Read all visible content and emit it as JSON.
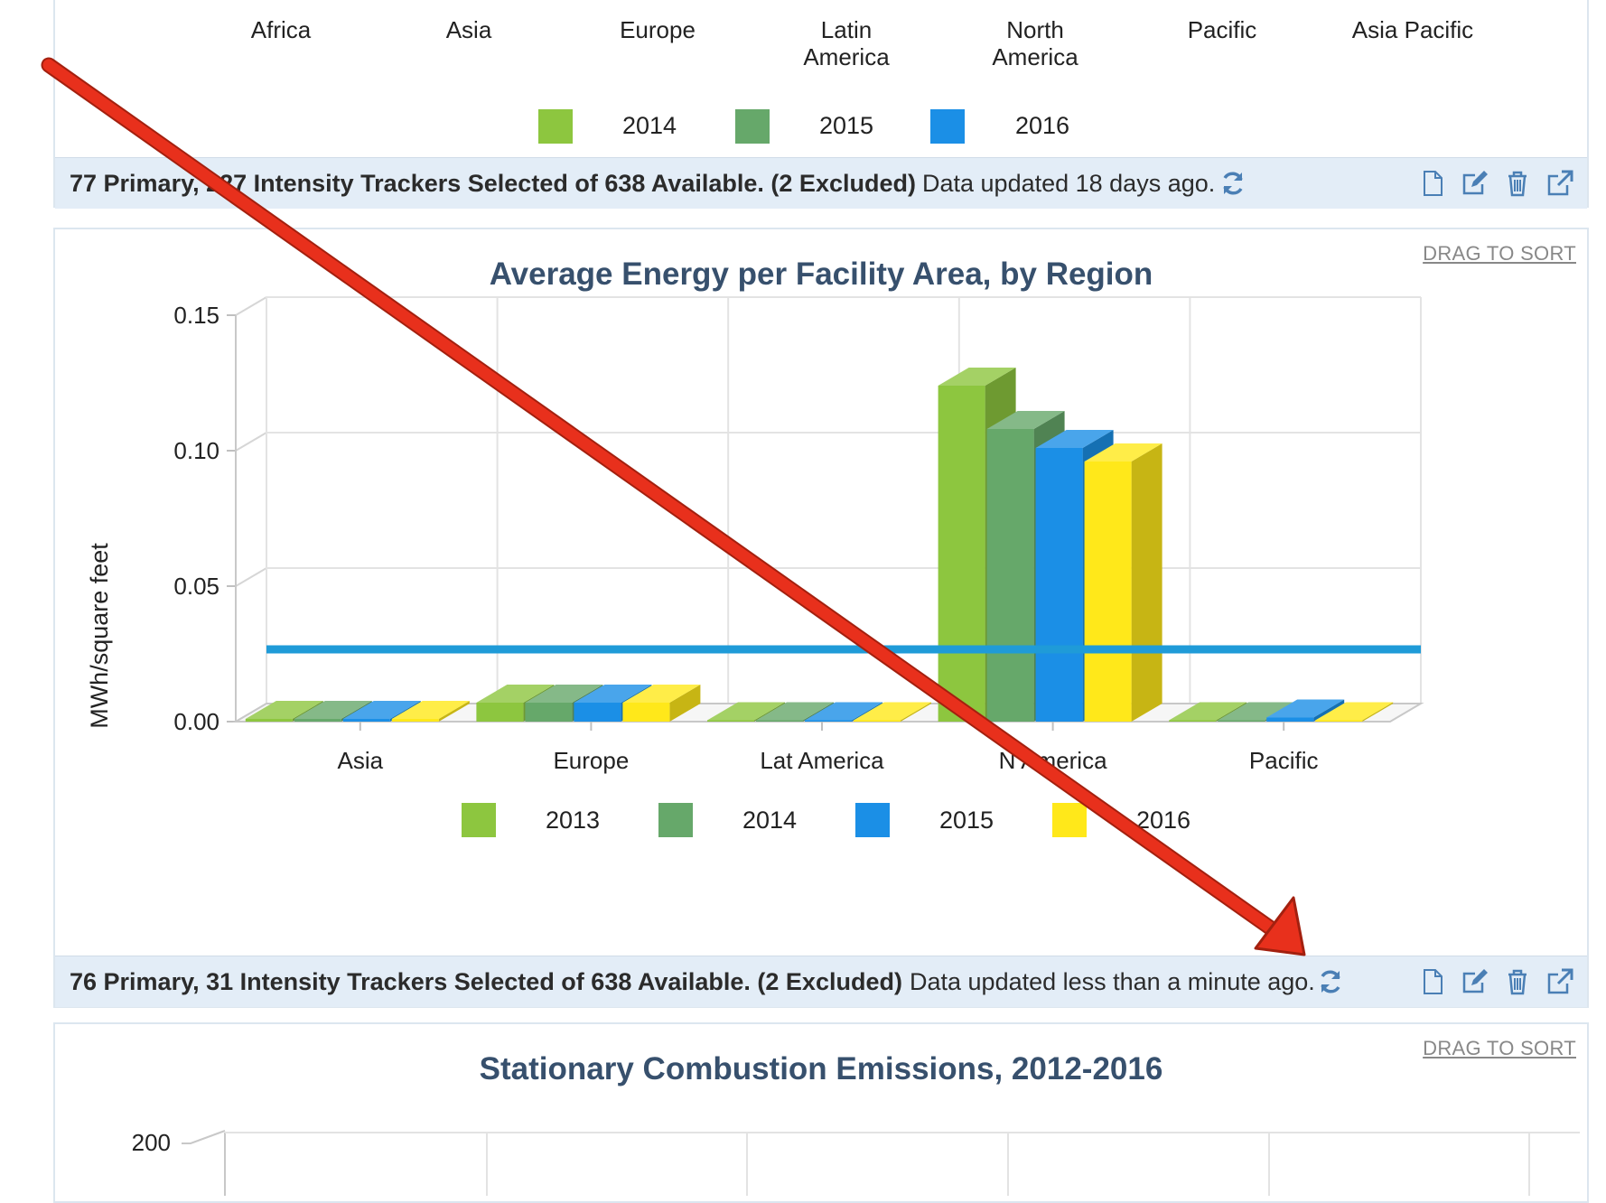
{
  "top_panel": {
    "categories": [
      "Africa",
      "Asia",
      "Europe",
      "Latin\nAmerica",
      "North\nAmerica",
      "Pacific",
      "Asia Pacific"
    ],
    "legend": [
      {
        "label": "2014",
        "color": "#8dc63f"
      },
      {
        "label": "2015",
        "color": "#66a86a"
      },
      {
        "label": "2016",
        "color": "#1b8fe6"
      }
    ],
    "footer": {
      "selection_text": "77 Primary, 227 Intensity Trackers Selected of 638 Available. (2 Excluded)",
      "updated_text": "Data updated 18 days ago."
    }
  },
  "middle_panel": {
    "drag_label": "DRAG TO SORT",
    "footer": {
      "selection_text": "76 Primary, 31 Intensity Trackers Selected of 638 Available. (2 Excluded)",
      "updated_text": "Data updated less than a minute ago."
    }
  },
  "bottom_panel": {
    "drag_label": "DRAG TO SORT",
    "title": "Stationary Combustion Emissions, 2012-2016",
    "y_tick_top": "200"
  },
  "chart_data": {
    "type": "bar",
    "title": "Average Energy per Facility Area, by Region",
    "xlabel": "",
    "ylabel": "MWh/square feet",
    "ylim": [
      0,
      0.15
    ],
    "y_ticks": [
      "0.00",
      "0.05",
      "0.10",
      "0.15"
    ],
    "categories": [
      "Asia",
      "Europe",
      "Lat America",
      "N America",
      "Pacific"
    ],
    "series": [
      {
        "name": "2013",
        "color": "#8dc63f",
        "values": [
          0.001,
          0.007,
          0.0005,
          0.124,
          0.0005
        ]
      },
      {
        "name": "2014",
        "color": "#66a86a",
        "values": [
          0.001,
          0.007,
          0.0005,
          0.108,
          0.0005
        ]
      },
      {
        "name": "2015",
        "color": "#1b8fe6",
        "values": [
          0.001,
          0.007,
          0.0005,
          0.101,
          0.0015
        ]
      },
      {
        "name": "2016",
        "color": "#ffe81a",
        "values": [
          0.001,
          0.007,
          0.0005,
          0.096,
          0.0005
        ]
      }
    ],
    "reference_line": {
      "value": 0.02,
      "color": "#1f9bd8"
    },
    "grid": true,
    "legend_position": "bottom",
    "style": "3d"
  },
  "colors": {
    "title": "#37506d",
    "footer_bg": "#e3edf7",
    "annotation_arrow": "#e8301c"
  }
}
